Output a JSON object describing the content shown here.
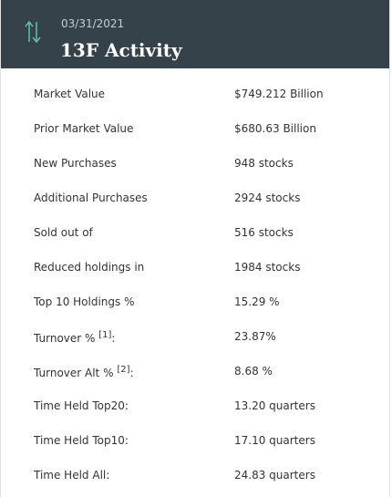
{
  "header": {
    "date": "03/31/2021",
    "title": "13F Activity"
  },
  "rows": [
    {
      "label": "Market Value",
      "value": "$749.212 Billion"
    },
    {
      "label": "Prior Market Value",
      "value": "$680.63 Billion"
    },
    {
      "label": "New Purchases",
      "value": "948 stocks"
    },
    {
      "label": "Additional Purchases",
      "value": "2924 stocks"
    },
    {
      "label": "Sold out of",
      "value": "516 stocks"
    },
    {
      "label": "Reduced holdings in",
      "value": "1984 stocks"
    },
    {
      "label": "Top 10 Holdings %",
      "value": "15.29 %"
    },
    {
      "label": "Turnover %",
      "note": "[1]",
      "tail": ":",
      "value": "23.87%"
    },
    {
      "label": "Turnover Alt %",
      "note": "[2]",
      "tail": ":",
      "value": "8.68 %"
    },
    {
      "label": "Time Held Top20:",
      "value": "13.20 quarters"
    },
    {
      "label": "Time Held Top10:",
      "value": "17.10 quarters"
    },
    {
      "label": "Time Held All:",
      "value": "24.83 quarters"
    }
  ]
}
